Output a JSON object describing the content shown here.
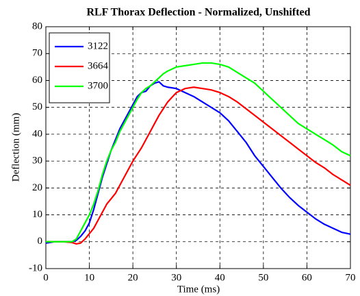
{
  "chart_data": {
    "type": "line",
    "title": "RLF Thorax Deflection - Normalized, Unshifted",
    "x_label": "Time (ms)",
    "y_label": "Deflection (mm)",
    "x": [
      0,
      2,
      4,
      6,
      7,
      8,
      9,
      10,
      11,
      12,
      13,
      14,
      15,
      16,
      17,
      18,
      19,
      20,
      21,
      22,
      23,
      24,
      25,
      26,
      27,
      28,
      30,
      32,
      34,
      36,
      38,
      40,
      42,
      44,
      46,
      48,
      50,
      52,
      54,
      56,
      58,
      60,
      62,
      64,
      66,
      68,
      70
    ],
    "series": [
      {
        "name": "3122",
        "color": "#0000ff",
        "values": [
          -0.5,
          0,
          0,
          0,
          0.5,
          2,
          4,
          7,
          12,
          18,
          24,
          29,
          34,
          38,
          42,
          45,
          48,
          51,
          54,
          55.5,
          56,
          58,
          59,
          59.5,
          58,
          57.5,
          57,
          55.5,
          54,
          52,
          50,
          48,
          45,
          41,
          37,
          32,
          28,
          24,
          20,
          16.5,
          13.5,
          11,
          8.5,
          6.5,
          5,
          3.5,
          2.8
        ]
      },
      {
        "name": "3664",
        "color": "#ff0000",
        "values": [
          0,
          0,
          0,
          -0.3,
          -0.8,
          -0.5,
          1,
          3,
          5,
          8,
          11,
          14,
          16,
          18,
          21,
          24,
          27,
          30,
          32.5,
          35,
          38,
          41,
          44,
          47,
          49.5,
          52,
          55.5,
          57,
          57.5,
          57,
          56.5,
          55.5,
          54,
          52,
          49.5,
          47,
          44.5,
          42,
          39.5,
          37,
          34.5,
          32,
          29.5,
          27.5,
          25,
          23,
          21
        ]
      },
      {
        "name": "3700",
        "color": "#00ff00",
        "values": [
          0,
          0,
          0,
          0,
          1,
          4,
          7,
          10,
          14,
          19,
          25,
          30,
          34,
          37,
          41,
          44,
          47,
          50,
          53,
          55.5,
          57,
          58,
          59.5,
          61,
          62.5,
          63.5,
          65,
          65.5,
          66,
          66.5,
          66.5,
          66,
          65,
          63,
          61,
          59,
          56,
          53,
          50,
          47,
          44,
          42,
          40,
          38,
          36,
          33.5,
          32
        ]
      }
    ],
    "xlim": [
      0,
      70
    ],
    "ylim": [
      -10,
      80
    ],
    "xticks": [
      0,
      10,
      20,
      30,
      40,
      50,
      60,
      70
    ],
    "yticks": [
      -10,
      0,
      10,
      20,
      30,
      40,
      50,
      60,
      70,
      80
    ],
    "grid": true,
    "legend": "upper left"
  }
}
